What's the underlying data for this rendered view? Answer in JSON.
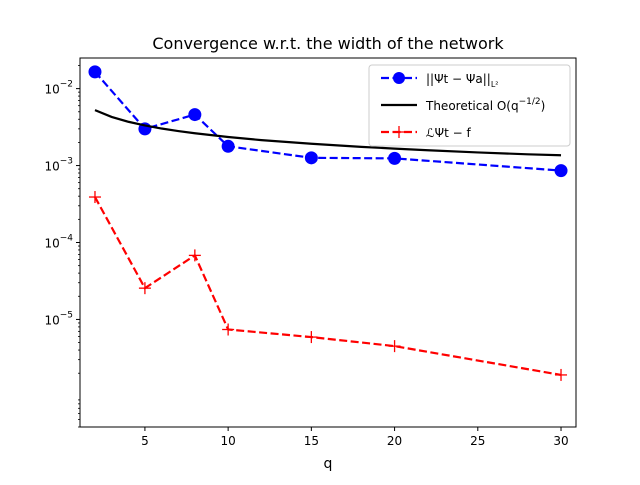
{
  "chart_data": {
    "type": "line",
    "title": "Convergence w.r.t. the width of the network",
    "xlabel": "q",
    "ylabel": "",
    "xlim": [
      1.1,
      30.9
    ],
    "ylim": [
      4e-07,
      0.025
    ],
    "yscale": "log",
    "xticks": [
      5,
      10,
      15,
      20,
      25,
      30
    ],
    "xtick_labels": [
      "5",
      "10",
      "15",
      "20",
      "25",
      "30"
    ],
    "yticks": [
      1e-05,
      0.0001,
      0.001,
      0.01
    ],
    "ytick_labels": [
      {
        "base": "10",
        "exp": "−5"
      },
      {
        "base": "10",
        "exp": "−4"
      },
      {
        "base": "10",
        "exp": "−3"
      },
      {
        "base": "10",
        "exp": "−2"
      }
    ],
    "grid": false,
    "legend_position": "top-right",
    "series": [
      {
        "name_main": "||Ψt − Ψa||",
        "name_sub": "L²",
        "color": "#0000ff",
        "linestyle": "dashed",
        "marker": "circle",
        "x": [
          2,
          5,
          8,
          10,
          15,
          20,
          30
        ],
        "y": [
          0.0165,
          0.003,
          0.0046,
          0.00178,
          0.00126,
          0.00124,
          0.00086
        ]
      },
      {
        "name_main": "Theoretical O(q",
        "name_sup": "−1/2",
        "name_tail": ")",
        "color": "#000000",
        "linestyle": "solid",
        "marker": "none",
        "x": [
          2,
          3,
          4,
          5,
          6,
          7,
          8,
          10,
          12,
          15,
          18,
          20,
          22,
          25,
          28,
          30
        ],
        "y": [
          0.00525,
          0.00429,
          0.00371,
          0.00332,
          0.00303,
          0.00281,
          0.00263,
          0.00235,
          0.00214,
          0.00192,
          0.00175,
          0.00166,
          0.00158,
          0.00148,
          0.0014,
          0.00136
        ]
      },
      {
        "name_main": "ℒΨt − f",
        "color": "#ff0000",
        "linestyle": "dashed",
        "marker": "plus",
        "x": [
          2,
          5,
          8,
          10,
          15,
          20,
          30
        ],
        "y": [
          0.00039,
          2.55e-05,
          6.8e-05,
          7.4e-06,
          5.9e-06,
          4.5e-06,
          1.9e-06
        ]
      }
    ]
  }
}
